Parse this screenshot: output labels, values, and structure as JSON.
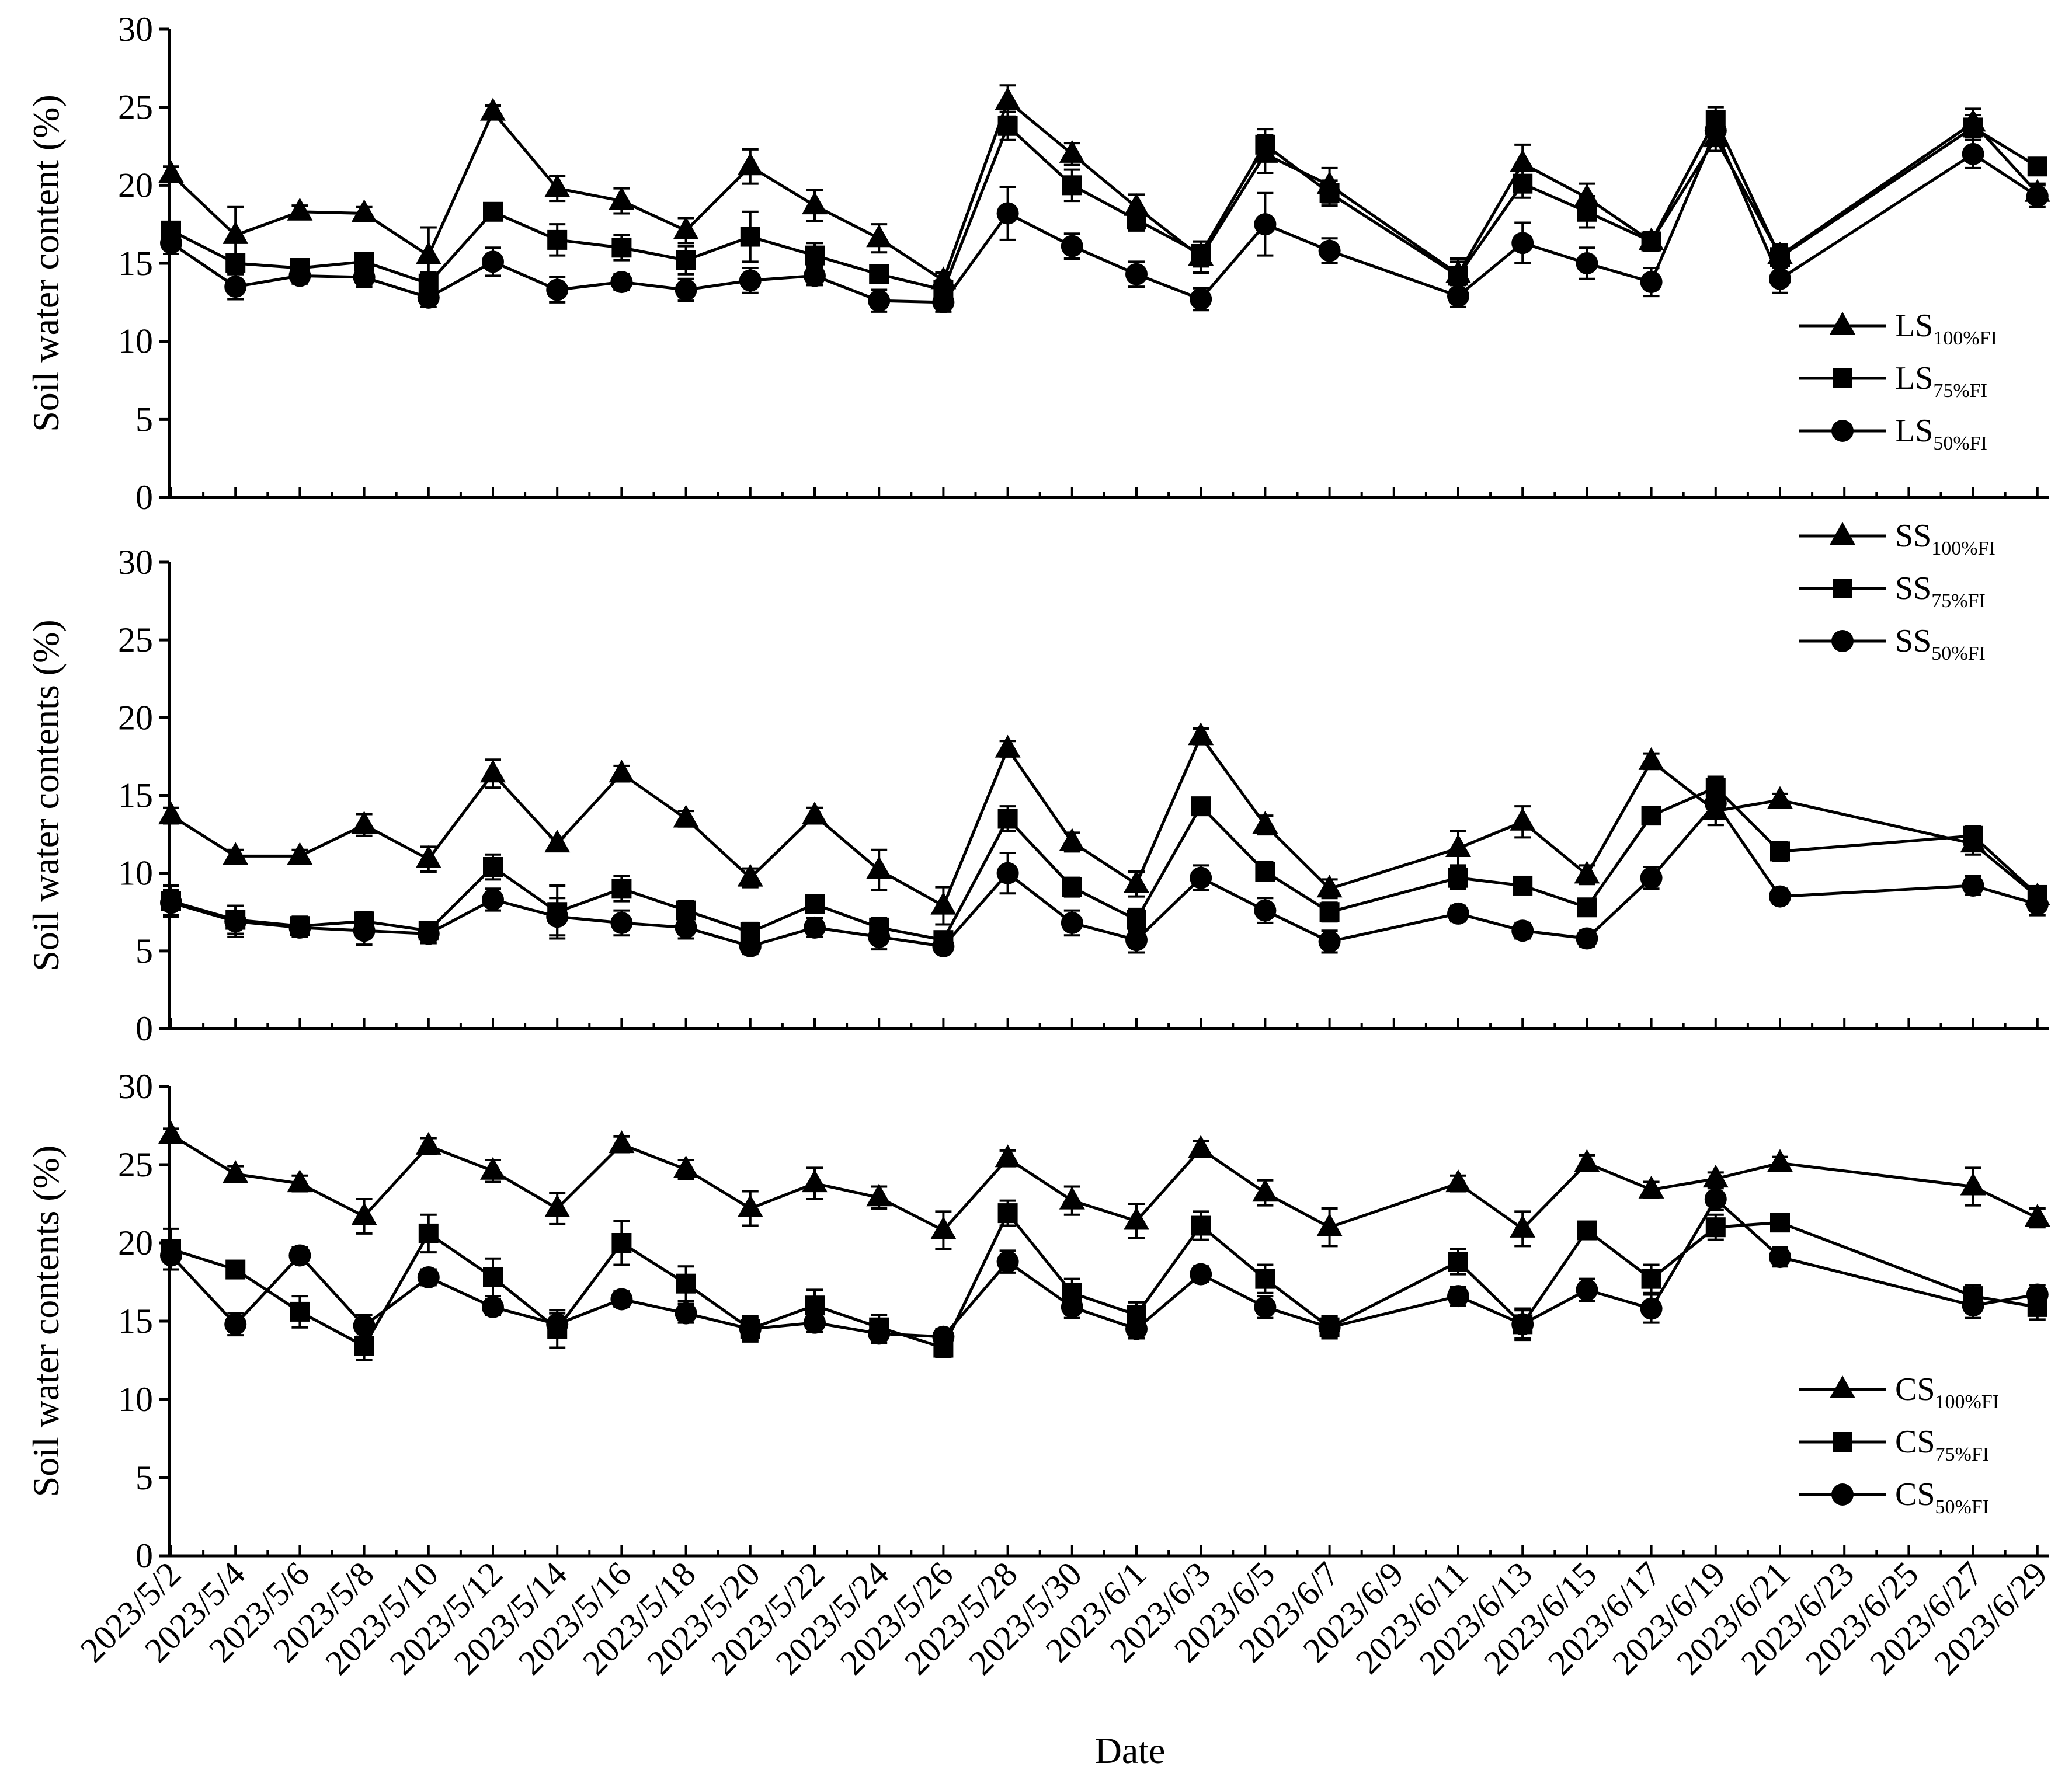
{
  "x_axis": {
    "xlabel": "Date",
    "tick_labels": [
      "2023/5/2",
      "2023/5/4",
      "2023/5/6",
      "2023/5/8",
      "2023/5/10",
      "2023/5/12",
      "2023/5/14",
      "2023/5/16",
      "2023/5/18",
      "2023/5/20",
      "2023/5/22",
      "2023/5/24",
      "2023/5/26",
      "2023/5/28",
      "2023/5/30",
      "2023/6/1",
      "2023/6/3",
      "2023/6/5",
      "2023/6/7",
      "2023/6/9",
      "2023/6/11",
      "2023/6/13",
      "2023/6/15",
      "2023/6/17",
      "2023/6/19",
      "2023/6/21",
      "2023/6/23",
      "2023/6/25",
      "2023/6/27",
      "2023/6/29"
    ]
  },
  "chart_data": [
    {
      "type": "line",
      "ylabel": "Soil water content (%)",
      "ylim": [
        0,
        30
      ],
      "yticks": [
        0,
        5,
        10,
        15,
        20,
        25,
        30
      ],
      "legend_position": "right",
      "x": [
        "2023/5/2",
        "2023/5/4",
        "2023/5/6",
        "2023/5/8",
        "2023/5/10",
        "2023/5/12",
        "2023/5/14",
        "2023/5/16",
        "2023/5/18",
        "2023/5/20",
        "2023/5/22",
        "2023/5/24",
        "2023/5/26",
        "2023/5/28",
        "2023/5/30",
        "2023/6/1",
        "2023/6/3",
        "2023/6/5",
        "2023/6/7",
        "2023/6/11",
        "2023/6/13",
        "2023/6/15",
        "2023/6/17",
        "2023/6/19",
        "2023/6/21",
        "2023/6/27",
        "2023/6/29"
      ],
      "series": [
        {
          "name": "LS",
          "sub": "100%FI",
          "marker": "triangle",
          "values": [
            20.7,
            16.8,
            18.3,
            18.2,
            15.5,
            24.7,
            19.8,
            19.0,
            17.1,
            21.2,
            18.7,
            16.6,
            13.9,
            25.4,
            22.0,
            18.6,
            15.4,
            22.0,
            20.0,
            14.3,
            21.4,
            19.2,
            16.4,
            23.0,
            15.5,
            24.0,
            19.5
          ],
          "errors": [
            0.5,
            1.8,
            0.4,
            0.4,
            1.8,
            0.4,
            0.8,
            0.8,
            0.8,
            1.1,
            1.0,
            0.9,
            0.5,
            1.0,
            0.7,
            0.8,
            1.0,
            1.2,
            1.1,
            1.0,
            1.2,
            0.9,
            0.5,
            0.8,
            0.7,
            0.9,
            0.6
          ]
        },
        {
          "name": "LS",
          "sub": "75%FI",
          "marker": "square",
          "values": [
            17.1,
            15.0,
            14.7,
            15.1,
            13.7,
            18.3,
            16.5,
            16.0,
            15.2,
            16.7,
            15.5,
            14.3,
            13.3,
            23.8,
            20.0,
            17.8,
            15.6,
            22.6,
            19.5,
            14.2,
            20.1,
            18.3,
            16.4,
            24.2,
            15.4,
            23.7,
            21.2
          ],
          "errors": [
            0.4,
            0.6,
            0.5,
            0.5,
            0.7,
            0.5,
            1.0,
            0.8,
            0.9,
            1.6,
            0.8,
            0.5,
            0.6,
            0.9,
            1.0,
            0.7,
            0.8,
            1.0,
            0.8,
            0.9,
            0.9,
            1.0,
            0.6,
            0.8,
            0.7,
            0.8,
            0.5
          ]
        },
        {
          "name": "LS",
          "sub": "50%FI",
          "marker": "circle",
          "values": [
            16.3,
            13.5,
            14.2,
            14.1,
            12.8,
            15.1,
            13.3,
            13.8,
            13.3,
            13.9,
            14.2,
            12.6,
            12.5,
            18.2,
            16.1,
            14.3,
            12.7,
            17.5,
            15.8,
            12.9,
            16.3,
            15.0,
            13.8,
            23.5,
            14.0,
            22.0,
            19.3
          ],
          "errors": [
            0.7,
            0.8,
            0.5,
            0.6,
            0.6,
            0.9,
            0.8,
            0.5,
            0.7,
            0.8,
            0.6,
            0.7,
            0.6,
            1.7,
            0.8,
            0.8,
            0.7,
            2.0,
            0.8,
            0.7,
            1.3,
            1.0,
            0.9,
            0.9,
            0.9,
            0.9,
            0.7
          ]
        }
      ]
    },
    {
      "type": "line",
      "ylabel": "Soil water contents (%)",
      "ylim": [
        0,
        30
      ],
      "yticks": [
        0,
        5,
        10,
        15,
        20,
        25,
        30
      ],
      "legend_position": "top-right",
      "x": [
        "2023/5/2",
        "2023/5/4",
        "2023/5/6",
        "2023/5/8",
        "2023/5/10",
        "2023/5/12",
        "2023/5/14",
        "2023/5/16",
        "2023/5/18",
        "2023/5/20",
        "2023/5/22",
        "2023/5/24",
        "2023/5/26",
        "2023/5/28",
        "2023/5/30",
        "2023/6/1",
        "2023/6/3",
        "2023/6/5",
        "2023/6/7",
        "2023/6/11",
        "2023/6/13",
        "2023/6/15",
        "2023/6/17",
        "2023/6/19",
        "2023/6/21",
        "2023/6/27",
        "2023/6/29"
      ],
      "series": [
        {
          "name": "SS",
          "sub": "100%FI",
          "marker": "triangle",
          "values": [
            13.7,
            11.1,
            11.1,
            13.1,
            10.9,
            16.4,
            11.9,
            16.4,
            13.5,
            9.7,
            13.7,
            10.2,
            7.9,
            18.0,
            12.0,
            9.3,
            18.8,
            13.1,
            9.0,
            11.6,
            13.3,
            9.9,
            17.2,
            14.0,
            14.7,
            11.9,
            8.5
          ],
          "errors": [
            0.5,
            0.4,
            0.4,
            0.7,
            0.8,
            0.9,
            0.4,
            0.5,
            0.5,
            0.6,
            0.5,
            1.3,
            1.2,
            0.5,
            0.6,
            0.8,
            0.5,
            0.6,
            0.6,
            1.1,
            1.0,
            0.6,
            0.5,
            0.9,
            0.4,
            0.7,
            0.5
          ]
        },
        {
          "name": "SS",
          "sub": "75%FI",
          "marker": "square",
          "values": [
            8.2,
            7.0,
            6.6,
            6.9,
            6.3,
            10.4,
            7.5,
            9.0,
            7.6,
            6.2,
            8.0,
            6.5,
            5.7,
            13.5,
            9.1,
            7.0,
            14.3,
            10.1,
            7.5,
            9.7,
            9.2,
            7.8,
            13.7,
            15.5,
            11.4,
            12.4,
            8.6
          ],
          "errors": [
            1.0,
            0.9,
            0.6,
            0.6,
            0.4,
            0.8,
            1.7,
            0.8,
            0.6,
            0.6,
            0.5,
            0.6,
            0.5,
            0.8,
            0.6,
            0.7,
            0.5,
            0.6,
            0.6,
            0.7,
            0.5,
            0.5,
            0.5,
            0.7,
            0.6,
            0.6,
            0.5
          ]
        },
        {
          "name": "SS",
          "sub": "50%FI",
          "marker": "circle",
          "values": [
            8.1,
            6.9,
            6.5,
            6.3,
            6.1,
            8.3,
            7.2,
            6.8,
            6.5,
            5.3,
            6.5,
            5.9,
            5.3,
            10.0,
            6.8,
            5.7,
            9.7,
            7.6,
            5.6,
            7.4,
            6.3,
            5.8,
            9.7,
            14.5,
            8.5,
            9.2,
            8.0
          ],
          "errors": [
            0.8,
            1.0,
            0.6,
            0.9,
            0.6,
            0.7,
            1.2,
            0.8,
            0.7,
            0.5,
            0.6,
            0.8,
            0.4,
            1.3,
            0.8,
            0.8,
            0.8,
            0.8,
            0.7,
            0.5,
            0.5,
            0.5,
            0.7,
            1.4,
            0.5,
            0.6,
            0.7
          ]
        }
      ]
    },
    {
      "type": "line",
      "ylabel": "Soil water contents (%)",
      "ylim": [
        0,
        30
      ],
      "yticks": [
        0,
        5,
        10,
        15,
        20,
        25,
        30
      ],
      "legend_position": "bottom-right",
      "x": [
        "2023/5/2",
        "2023/5/4",
        "2023/5/6",
        "2023/5/8",
        "2023/5/10",
        "2023/5/12",
        "2023/5/14",
        "2023/5/16",
        "2023/5/18",
        "2023/5/20",
        "2023/5/22",
        "2023/5/24",
        "2023/5/26",
        "2023/5/28",
        "2023/5/30",
        "2023/6/1",
        "2023/6/3",
        "2023/6/5",
        "2023/6/7",
        "2023/6/11",
        "2023/6/13",
        "2023/6/15",
        "2023/6/17",
        "2023/6/19",
        "2023/6/21",
        "2023/6/27",
        "2023/6/29"
      ],
      "series": [
        {
          "name": "CS",
          "sub": "100%FI",
          "marker": "triangle",
          "values": [
            26.9,
            24.4,
            23.8,
            21.7,
            26.2,
            24.6,
            22.2,
            26.3,
            24.7,
            22.2,
            23.8,
            22.9,
            20.8,
            25.4,
            22.7,
            21.4,
            26.0,
            23.2,
            21.0,
            23.8,
            20.9,
            25.1,
            23.4,
            24.1,
            25.1,
            23.6,
            21.6
          ],
          "errors": [
            0.4,
            0.5,
            0.5,
            1.1,
            0.5,
            0.7,
            1.0,
            0.5,
            0.6,
            1.1,
            1.0,
            0.7,
            1.2,
            0.5,
            0.9,
            1.1,
            0.5,
            0.8,
            1.2,
            0.5,
            1.1,
            0.5,
            0.5,
            0.4,
            0.4,
            1.2,
            0.6
          ]
        },
        {
          "name": "CS",
          "sub": "75%FI",
          "marker": "square",
          "values": [
            19.6,
            18.3,
            15.6,
            13.4,
            20.6,
            17.8,
            14.5,
            20.0,
            17.4,
            14.5,
            16.0,
            14.6,
            13.3,
            21.9,
            16.8,
            15.4,
            21.1,
            17.7,
            14.6,
            18.8,
            14.8,
            20.8,
            17.7,
            21.0,
            21.3,
            16.6,
            15.9
          ],
          "errors": [
            1.3,
            0.5,
            1.0,
            0.9,
            1.2,
            1.2,
            1.2,
            1.4,
            1.1,
            0.8,
            1.0,
            0.8,
            0.6,
            0.8,
            0.9,
            0.8,
            0.9,
            0.9,
            0.7,
            0.8,
            0.9,
            0.4,
            0.9,
            0.8,
            0.4,
            0.7,
            0.8
          ]
        },
        {
          "name": "CS",
          "sub": "50%FI",
          "marker": "circle",
          "values": [
            19.2,
            14.8,
            19.2,
            14.7,
            17.8,
            15.9,
            14.8,
            16.4,
            15.5,
            14.5,
            14.9,
            14.2,
            14.0,
            18.8,
            15.9,
            14.5,
            18.0,
            15.9,
            14.6,
            16.6,
            14.8,
            17.0,
            15.8,
            22.8,
            19.1,
            16.0,
            16.7
          ],
          "errors": [
            0.9,
            0.7,
            0.5,
            0.7,
            0.5,
            0.5,
            0.7,
            0.5,
            0.6,
            0.7,
            0.6,
            0.6,
            0.5,
            0.7,
            0.7,
            0.6,
            0.5,
            0.7,
            0.7,
            0.6,
            1.0,
            0.7,
            0.9,
            0.7,
            0.6,
            0.8,
            0.6
          ]
        }
      ]
    }
  ]
}
